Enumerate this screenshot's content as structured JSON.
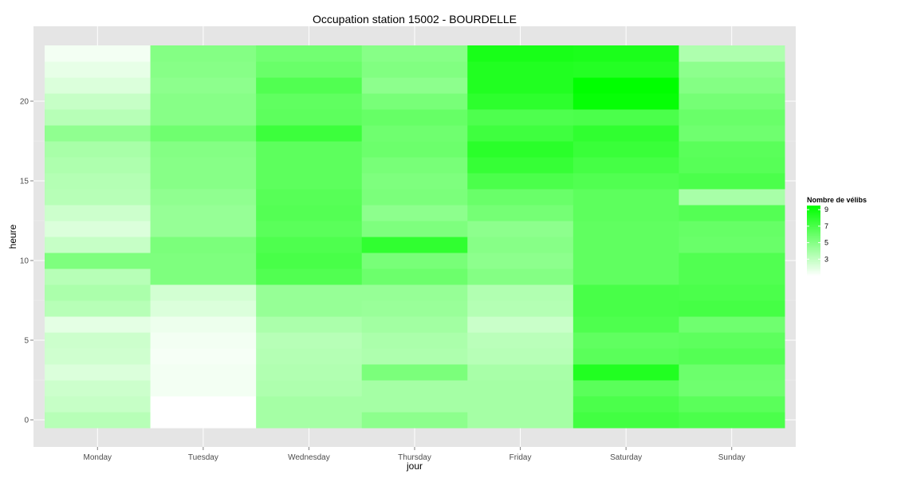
{
  "chart_data": {
    "type": "heatmap",
    "title": "Occupation station 15002 - BOURDELLE",
    "xlabel": "jour",
    "ylabel": "heure",
    "x_categories": [
      "Monday",
      "Tuesday",
      "Wednesday",
      "Thursday",
      "Friday",
      "Saturday",
      "Sunday"
    ],
    "y_values": [
      0,
      1,
      2,
      3,
      4,
      5,
      6,
      7,
      8,
      9,
      10,
      11,
      12,
      13,
      14,
      15,
      16,
      17,
      18,
      19,
      20,
      21,
      22,
      23
    ],
    "y_ticks": [
      0,
      5,
      10,
      15,
      20
    ],
    "ylim": [
      -0.5,
      23.5
    ],
    "values": [
      [
        3.4,
        1.0,
        4.0,
        4.8,
        4.0,
        7.3,
        7.0
      ],
      [
        2.9,
        1.0,
        4.0,
        4.0,
        4.0,
        7.0,
        6.5
      ],
      [
        2.7,
        1.4,
        3.7,
        4.0,
        4.0,
        6.5,
        5.8
      ],
      [
        2.2,
        1.4,
        3.6,
        5.4,
        3.9,
        8.4,
        5.9
      ],
      [
        2.6,
        1.3,
        3.5,
        3.7,
        3.4,
        6.5,
        6.7
      ],
      [
        2.7,
        1.4,
        3.4,
        3.8,
        3.3,
        6.3,
        6.4
      ],
      [
        1.9,
        1.6,
        3.8,
        4.1,
        2.8,
        6.9,
        5.8
      ],
      [
        3.4,
        2.2,
        4.5,
        4.4,
        3.5,
        7.1,
        7.2
      ],
      [
        3.8,
        2.5,
        4.5,
        4.5,
        3.6,
        7.1,
        7.0
      ],
      [
        3.4,
        5.3,
        6.8,
        5.9,
        5.1,
        6.3,
        6.8
      ],
      [
        5.3,
        5.3,
        7.1,
        5.5,
        4.8,
        6.3,
        6.8
      ],
      [
        2.9,
        5.4,
        6.9,
        7.9,
        5.0,
        6.3,
        6.0
      ],
      [
        2.2,
        4.5,
        6.5,
        5.3,
        4.8,
        6.3,
        6.1
      ],
      [
        2.7,
        4.5,
        6.7,
        4.8,
        5.6,
        6.4,
        6.7
      ],
      [
        3.4,
        4.7,
        6.6,
        5.4,
        6.0,
        6.4,
        3.9
      ],
      [
        3.5,
        5.0,
        6.4,
        5.3,
        7.0,
        6.8,
        7.0
      ],
      [
        3.7,
        5.0,
        6.4,
        5.5,
        7.7,
        7.2,
        6.6
      ],
      [
        3.9,
        5.1,
        6.4,
        5.9,
        8.1,
        7.6,
        6.5
      ],
      [
        4.7,
        5.8,
        7.5,
        5.8,
        7.4,
        7.9,
        5.8
      ],
      [
        3.4,
        5.0,
        6.4,
        6.1,
        6.9,
        7.0,
        6.0
      ],
      [
        2.9,
        5.0,
        6.3,
        5.5,
        8.0,
        9.3,
        5.6
      ],
      [
        2.2,
        4.8,
        6.8,
        4.8,
        8.4,
        9.5,
        5.1
      ],
      [
        1.8,
        5.0,
        6.0,
        5.2,
        8.4,
        8.3,
        4.8
      ],
      [
        1.4,
        5.1,
        5.7,
        5.0,
        8.7,
        8.6,
        3.7
      ]
    ],
    "legend": {
      "title": "Nombre de vélibs",
      "labels": [
        "9",
        "7",
        "5",
        "3"
      ],
      "breaks": [
        9,
        7,
        5,
        3
      ],
      "range": [
        1,
        9.5
      ],
      "placement": "right"
    },
    "colors": {
      "low": "#ffffff",
      "high": "#00ff00",
      "panel_background": "#e5e5e5",
      "grid": "#ffffff"
    },
    "grid": true
  }
}
